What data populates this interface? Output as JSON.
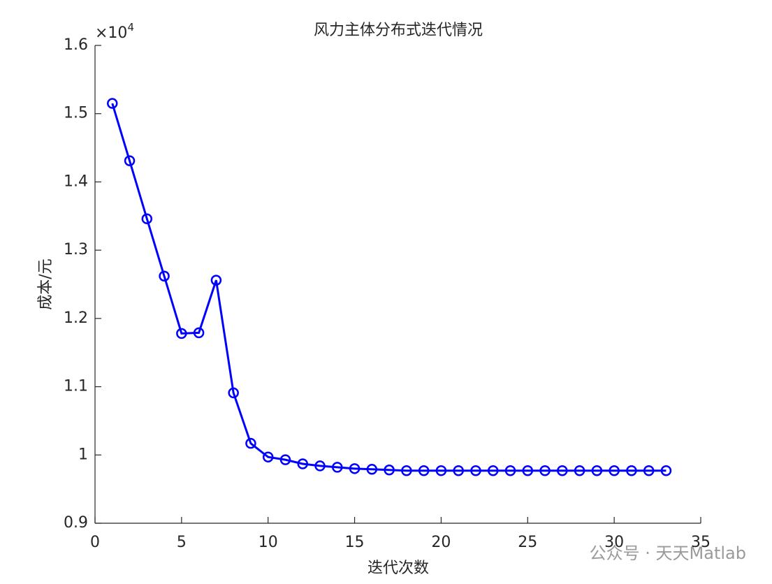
{
  "chart_data": {
    "type": "line",
    "title": "风力主体分布式迭代情况",
    "x_label": "迭代次数",
    "y_label": "成本/元",
    "y_scale_base": "×10",
    "y_scale_exponent": "4",
    "watermark": "公众号 · 天天Matlab",
    "x": [
      1,
      2,
      3,
      4,
      5,
      6,
      7,
      8,
      9,
      10,
      11,
      12,
      13,
      14,
      15,
      16,
      17,
      18,
      19,
      20,
      21,
      22,
      23,
      24,
      25,
      26,
      27,
      28,
      29,
      30,
      31,
      32,
      33
    ],
    "values": [
      1.515,
      1.431,
      1.346,
      1.262,
      1.178,
      1.179,
      1.256,
      1.091,
      1.017,
      0.997,
      0.993,
      0.987,
      0.984,
      0.982,
      0.98,
      0.979,
      0.978,
      0.977,
      0.977,
      0.977,
      0.977,
      0.977,
      0.977,
      0.977,
      0.977,
      0.977,
      0.977,
      0.977,
      0.977,
      0.977,
      0.977,
      0.977,
      0.977
    ],
    "color": "#0000ff",
    "marker": "circle",
    "xlim": [
      0,
      35
    ],
    "xticks": [
      0,
      5,
      10,
      15,
      20,
      25,
      30,
      35
    ],
    "ylim": [
      0.9,
      1.6
    ],
    "yticks": [
      0.9,
      1,
      1.1,
      1.2,
      1.3,
      1.4,
      1.5,
      1.6
    ]
  }
}
